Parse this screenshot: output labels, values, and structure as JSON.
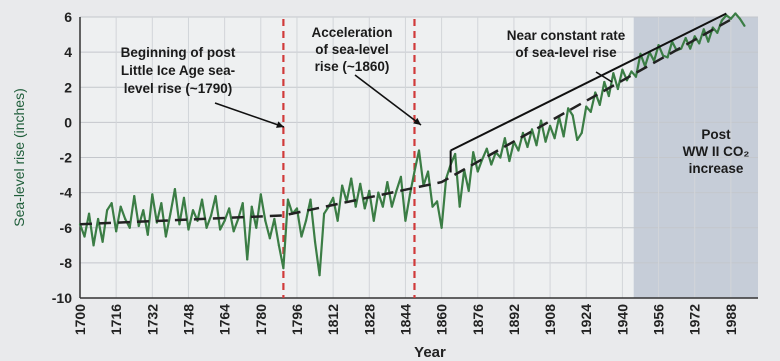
{
  "chart_data": {
    "type": "line",
    "title": "",
    "xlabel": "Year",
    "ylabel": "Sea-level rise (inches)",
    "xlim": [
      1700,
      2000
    ],
    "ylim": [
      -10,
      6
    ],
    "x_ticks": [
      "1700",
      "1716",
      "1732",
      "1748",
      "1764",
      "1780",
      "1796",
      "1812",
      "1828",
      "1844",
      "1860",
      "1876",
      "1892",
      "1908",
      "1924",
      "1940",
      "1956",
      "1972",
      "1988"
    ],
    "y_ticks": [
      "6",
      "4",
      "2",
      "0",
      "-2",
      "-4",
      "-6",
      "-8",
      "-10"
    ],
    "grid": true,
    "colors": {
      "series": "#3b7d45",
      "trend": "#222222",
      "markers": "#d03a3a",
      "shade": "#c6cdd8",
      "background": "#eef0f1"
    },
    "series": [
      {
        "x": [
          1700,
          1702,
          1704,
          1706,
          1708,
          1710,
          1712,
          1714,
          1716,
          1718,
          1720,
          1722,
          1724,
          1726,
          1728,
          1730,
          1732,
          1734,
          1736,
          1738,
          1740,
          1742,
          1744,
          1746,
          1748,
          1750,
          1752,
          1754,
          1756,
          1758,
          1760,
          1762,
          1764,
          1766,
          1768,
          1770,
          1772,
          1774,
          1776,
          1778,
          1780,
          1782,
          1784,
          1786,
          1788,
          1790,
          1792,
          1794,
          1796,
          1798,
          1800,
          1802,
          1804,
          1806,
          1808,
          1810,
          1812,
          1814,
          1816,
          1818,
          1820,
          1822,
          1824,
          1826,
          1828,
          1830,
          1832,
          1834,
          1836,
          1838,
          1840,
          1842,
          1844,
          1846,
          1848,
          1850,
          1852,
          1854,
          1856,
          1858,
          1860,
          1862,
          1864,
          1866,
          1868,
          1870,
          1872,
          1874,
          1876,
          1878,
          1880,
          1882,
          1884,
          1886,
          1888,
          1890,
          1892,
          1894,
          1896,
          1898,
          1900,
          1902,
          1904,
          1906,
          1908,
          1910,
          1912,
          1914,
          1916,
          1918,
          1920,
          1922,
          1924,
          1926,
          1928,
          1930,
          1932,
          1934,
          1936,
          1938,
          1940,
          1942,
          1944,
          1946,
          1948,
          1950,
          1952,
          1954,
          1956,
          1958,
          1960,
          1962,
          1964,
          1966,
          1968,
          1970,
          1972,
          1974,
          1976,
          1978,
          1980,
          1982,
          1984,
          1986,
          1988,
          1990,
          1992,
          1994
        ],
        "values": [
          -5.8,
          -6.5,
          -5.2,
          -7.0,
          -5.5,
          -6.8,
          -5.0,
          -4.6,
          -6.2,
          -4.8,
          -5.5,
          -6.0,
          -4.2,
          -5.9,
          -5.0,
          -6.4,
          -4.1,
          -5.7,
          -4.6,
          -6.5,
          -5.2,
          -3.8,
          -5.8,
          -4.3,
          -6.1,
          -5.0,
          -5.6,
          -4.4,
          -6.0,
          -5.3,
          -4.2,
          -6.1,
          -5.6,
          -4.9,
          -6.2,
          -5.5,
          -4.6,
          -7.8,
          -4.8,
          -6.0,
          -4.1,
          -5.6,
          -6.6,
          -5.5,
          -7.0,
          -8.3,
          -4.4,
          -5.2,
          -4.9,
          -6.5,
          -5.6,
          -4.4,
          -6.8,
          -8.7,
          -5.2,
          -4.8,
          -4.3,
          -5.6,
          -3.6,
          -4.5,
          -3.2,
          -4.8,
          -3.5,
          -4.9,
          -3.9,
          -5.6,
          -4.0,
          -4.8,
          -3.4,
          -4.8,
          -3.9,
          -3.1,
          -5.6,
          -4.1,
          -2.8,
          -1.6,
          -3.6,
          -2.8,
          -4.8,
          -4.5,
          -6.0,
          -3.2,
          -2.4,
          -1.8,
          -4.8,
          -2.7,
          -3.9,
          -1.7,
          -2.8,
          -2.1,
          -1.5,
          -2.4,
          -1.7,
          -2.0,
          -0.9,
          -2.2,
          -1.1,
          -1.6,
          -0.6,
          -1.4,
          -0.4,
          -1.3,
          0.1,
          -1.1,
          -0.2,
          -0.9,
          0.3,
          -0.8,
          0.8,
          0.4,
          -1.0,
          -0.6,
          0.9,
          0.6,
          1.7,
          1.0,
          2.3,
          1.5,
          2.8,
          1.9,
          3.0,
          2.4,
          2.9,
          2.6,
          3.9,
          3.2,
          4.0,
          3.5,
          4.4,
          3.8,
          3.7,
          4.6,
          4.1,
          4.2,
          4.8,
          4.2,
          4.9,
          4.5,
          5.3,
          4.6,
          5.4,
          5.1,
          5.8,
          6.1,
          5.9,
          6.2,
          5.9,
          5.5
        ]
      },
      {
        "x": [
          1700,
          1790,
          1860,
          1990
        ],
        "values": [
          -5.8,
          -5.3,
          -3.4,
          6.0
        ]
      }
    ],
    "extra_lines": [
      {
        "x": [
          1864,
          1986
        ],
        "values": [
          -1.6,
          6.2
        ]
      }
    ],
    "vlines": [
      1790,
      1848
    ],
    "shaded_x": [
      1945,
      2000
    ],
    "annotations": [
      {
        "lines": [
          "Beginning of post",
          "Little Ice Age sea-",
          "level rise (~1790)"
        ]
      },
      {
        "lines": [
          "Acceleration",
          "of sea-level",
          "rise (~1860)"
        ]
      },
      {
        "lines": [
          "Near constant rate",
          "of sea-level rise"
        ]
      },
      {
        "lines": [
          "Post",
          "WW II CO₂",
          "increase"
        ]
      }
    ]
  }
}
